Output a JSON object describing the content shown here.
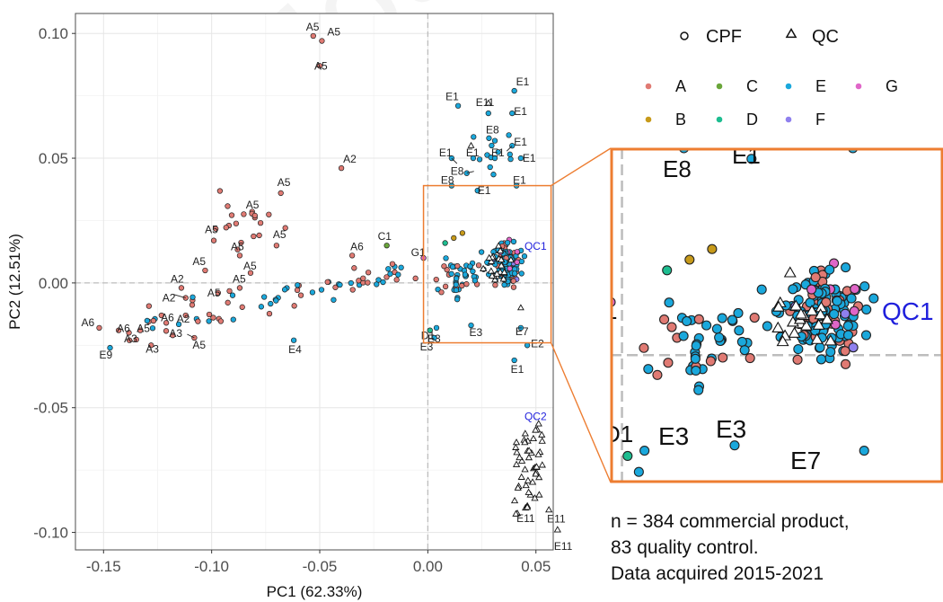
{
  "chart_data": {
    "type": "scatter",
    "xlabel": "PC1 (62.33%)",
    "ylabel": "PC2 (12.51%)",
    "xlim": [
      -0.163,
      0.058
    ],
    "ylim": [
      -0.107,
      0.108
    ],
    "x_ticks": [
      -0.15,
      -0.1,
      -0.05,
      0.0,
      0.05
    ],
    "x_tick_labels": [
      "-0.15",
      "-0.10",
      "-0.05",
      "0.00",
      "0.05"
    ],
    "y_ticks": [
      0.1,
      0.05,
      0.0,
      -0.05,
      -0.1
    ],
    "y_tick_labels": [
      "0.10",
      "0.05",
      "0.00",
      "-0.05",
      "-0.10"
    ],
    "grid": true,
    "shape_legend": [
      {
        "label": "CPF",
        "shape": "circle"
      },
      {
        "label": "QC",
        "shape": "triangle"
      }
    ],
    "group_legend": [
      {
        "label": "A",
        "color": "#e07a73"
      },
      {
        "label": "B",
        "color": "#c79a1a"
      },
      {
        "label": "C",
        "color": "#6aa63a"
      },
      {
        "label": "D",
        "color": "#1dbd90"
      },
      {
        "label": "E",
        "color": "#1aa8dc"
      },
      {
        "label": "F",
        "color": "#8f80ee"
      },
      {
        "label": "G",
        "color": "#e066c8"
      }
    ],
    "points_labeled": [
      {
        "label": "A5",
        "x": -0.053,
        "y": 0.099,
        "group": "A"
      },
      {
        "label": "A5",
        "x": -0.049,
        "y": 0.097,
        "group": "A"
      },
      {
        "label": "A5",
        "x": -0.05,
        "y": 0.087,
        "group": "A"
      },
      {
        "label": "A2",
        "x": -0.04,
        "y": 0.046,
        "group": "A"
      },
      {
        "label": "A5",
        "x": -0.068,
        "y": 0.036,
        "group": "A"
      },
      {
        "label": "A5",
        "x": -0.08,
        "y": 0.027,
        "group": "A"
      },
      {
        "label": "A5",
        "x": -0.099,
        "y": 0.017,
        "group": "A"
      },
      {
        "label": "A5",
        "x": -0.07,
        "y": 0.015,
        "group": "A"
      },
      {
        "label": "A5",
        "x": -0.087,
        "y": 0.011,
        "group": "A"
      },
      {
        "label": "A5",
        "x": -0.082,
        "y": 0.004,
        "group": "A"
      },
      {
        "label": "A5",
        "x": -0.103,
        "y": 0.005,
        "group": "A"
      },
      {
        "label": "A5",
        "x": -0.087,
        "y": -0.002,
        "group": "A"
      },
      {
        "label": "A5",
        "x": -0.097,
        "y": -0.004,
        "group": "A"
      },
      {
        "label": "A6",
        "x": -0.035,
        "y": 0.011,
        "group": "A"
      },
      {
        "label": "A2",
        "x": -0.114,
        "y": -0.002,
        "group": "A"
      },
      {
        "label": "A2",
        "x": -0.112,
        "y": -0.006,
        "group": "A"
      },
      {
        "label": "A2",
        "x": -0.112,
        "y": -0.013,
        "group": "A"
      },
      {
        "label": "A6",
        "x": -0.152,
        "y": -0.018,
        "group": "A"
      },
      {
        "label": "A6",
        "x": -0.143,
        "y": -0.019,
        "group": "A"
      },
      {
        "label": "A5",
        "x": -0.133,
        "y": -0.019,
        "group": "A"
      },
      {
        "label": "A6",
        "x": -0.121,
        "y": -0.016,
        "group": "A"
      },
      {
        "label": "A3",
        "x": -0.138,
        "y": -0.023,
        "group": "A"
      },
      {
        "label": "A3",
        "x": -0.128,
        "y": -0.025,
        "group": "A"
      },
      {
        "label": "A3",
        "x": -0.118,
        "y": -0.021,
        "group": "A"
      },
      {
        "label": "A5",
        "x": -0.108,
        "y": -0.022,
        "group": "A"
      },
      {
        "label": "E9",
        "x": -0.147,
        "y": -0.026,
        "group": "E"
      },
      {
        "label": "E4",
        "x": -0.062,
        "y": -0.023,
        "group": "E"
      },
      {
        "label": "C1",
        "x": -0.019,
        "y": 0.015,
        "group": "C"
      },
      {
        "label": "G1",
        "x": -0.002,
        "y": 0.01,
        "group": "G"
      },
      {
        "label": "D1",
        "x": 0.001,
        "y": -0.019,
        "group": "D"
      },
      {
        "label": "E3",
        "x": 0.004,
        "y": -0.018,
        "group": "E"
      },
      {
        "label": "E3",
        "x": 0.02,
        "y": -0.017,
        "group": "E"
      },
      {
        "label": "E3",
        "x": 0.003,
        "y": -0.022,
        "group": "E"
      },
      {
        "label": "E7",
        "x": 0.043,
        "y": -0.018,
        "group": "E"
      },
      {
        "label": "E2",
        "x": 0.046,
        "y": -0.025,
        "group": "E"
      },
      {
        "label": "E1",
        "x": 0.04,
        "y": -0.031,
        "group": "E"
      },
      {
        "label": "E1",
        "x": 0.04,
        "y": 0.077,
        "group": "E"
      },
      {
        "label": "E1",
        "x": 0.014,
        "y": 0.071,
        "group": "E"
      },
      {
        "label": "E11",
        "x": 0.028,
        "y": 0.068,
        "group": "E"
      },
      {
        "label": "E1",
        "x": 0.039,
        "y": 0.068,
        "group": "E"
      },
      {
        "label": "E8",
        "x": 0.031,
        "y": 0.057,
        "group": "E"
      },
      {
        "label": "E1",
        "x": 0.039,
        "y": 0.055,
        "group": "E"
      },
      {
        "label": "E1",
        "x": 0.011,
        "y": 0.05,
        "group": "E"
      },
      {
        "label": "E1",
        "x": 0.021,
        "y": 0.05,
        "group": "E"
      },
      {
        "label": "E1",
        "x": 0.031,
        "y": 0.05,
        "group": "E"
      },
      {
        "label": "E1",
        "x": 0.043,
        "y": 0.05,
        "group": "E"
      },
      {
        "label": "E8",
        "x": 0.018,
        "y": 0.044,
        "group": "E"
      },
      {
        "label": "E1",
        "x": 0.041,
        "y": 0.039,
        "group": "E"
      },
      {
        "label": "E8",
        "x": 0.011,
        "y": 0.039,
        "group": "E"
      },
      {
        "label": "E1",
        "x": 0.023,
        "y": 0.037,
        "group": "E"
      },
      {
        "label": "E11",
        "x": 0.046,
        "y": -0.09,
        "group": "QC"
      },
      {
        "label": "E11",
        "x": 0.056,
        "y": -0.091,
        "group": "QC"
      },
      {
        "label": "E11",
        "x": 0.06,
        "y": -0.099,
        "group": "QC"
      }
    ],
    "qc_cluster_labels": [
      {
        "label": "QC1",
        "x": 0.053,
        "y": 0.009
      },
      {
        "label": "QC2",
        "x": 0.053,
        "y": -0.055
      }
    ],
    "inset": {
      "xlim": [
        -0.002,
        0.057
      ],
      "ylim": [
        -0.024,
        0.039
      ],
      "labels": [
        "E8",
        "E1",
        "QC1",
        "D1",
        "E3",
        "E3",
        "E7"
      ]
    }
  },
  "note_lines": [
    "n = 384 commercial product,",
    "83 quality control.",
    "Data acquired 2015-2021"
  ],
  "watermark": "Journal Pre-proof"
}
